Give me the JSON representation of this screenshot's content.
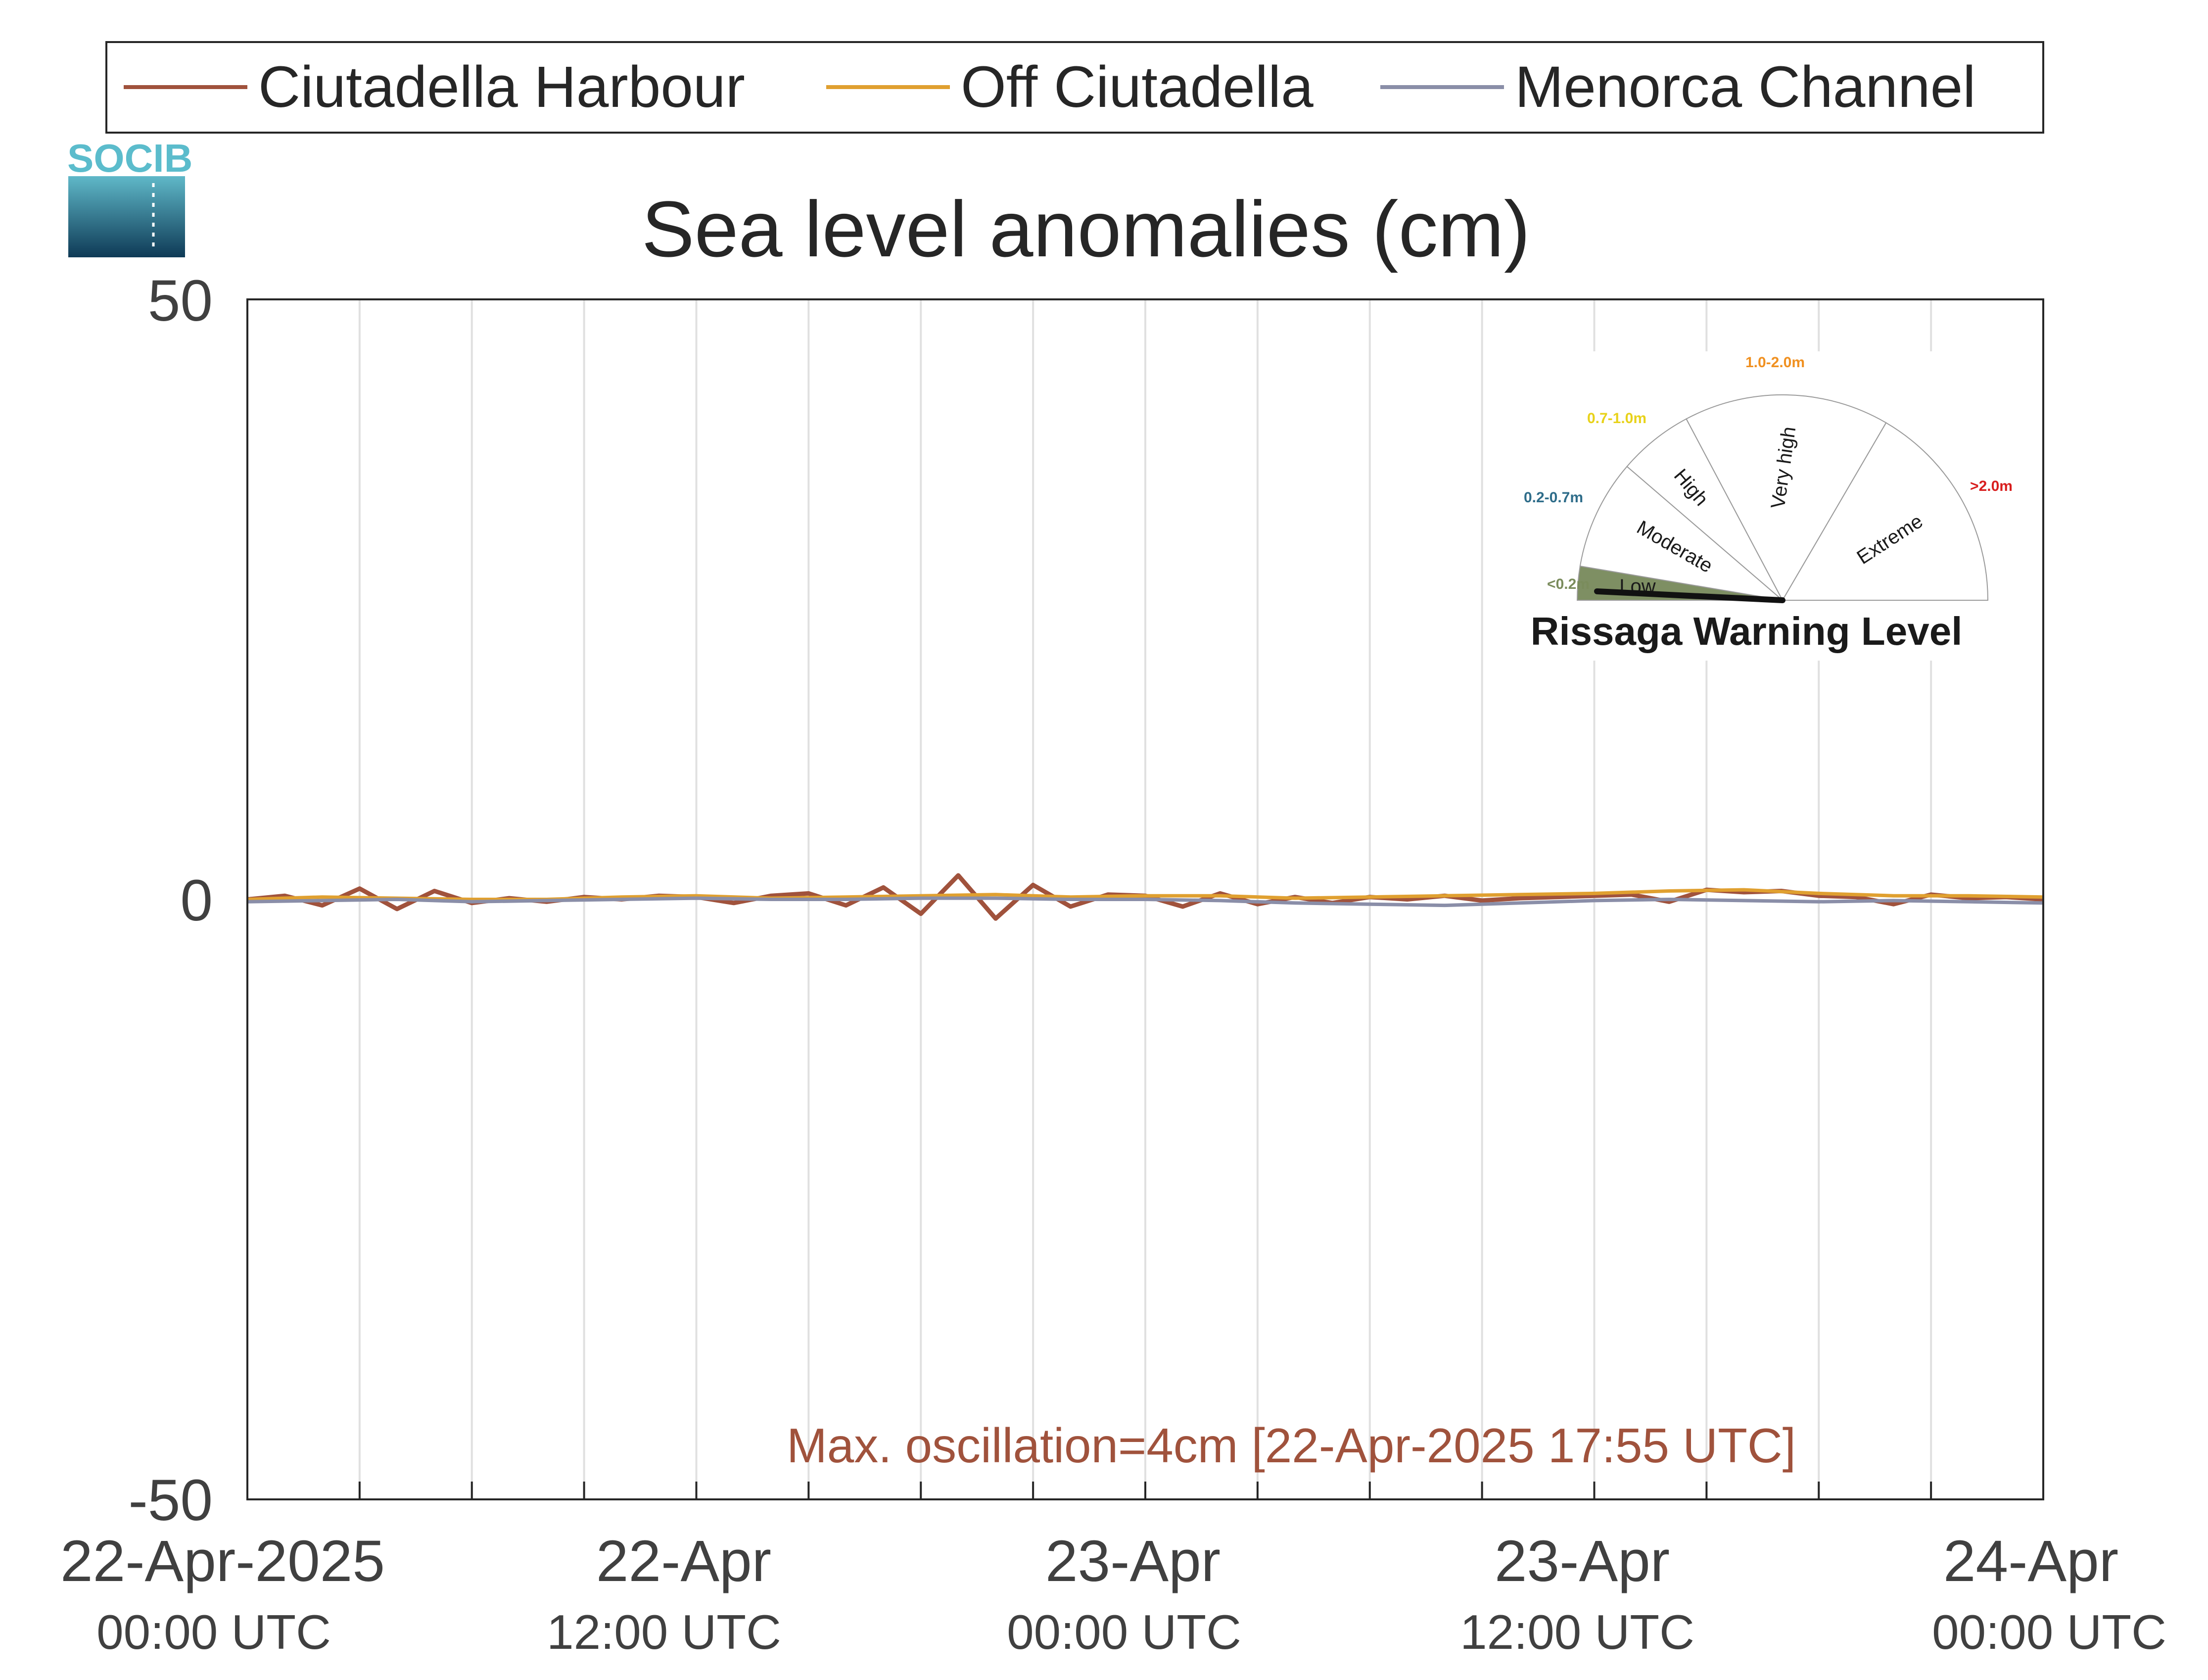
{
  "chart_data": {
    "type": "line",
    "title": "Sea level anomalies (cm)",
    "xlabel": "",
    "ylabel": "",
    "ylim": [
      -50,
      50
    ],
    "yticks": [
      "50",
      "0",
      "-50"
    ],
    "xlim": [
      "2025-04-22 00:00",
      "2025-04-24 00:00"
    ],
    "x_ticks": [
      {
        "date": "22-Apr-2025",
        "time": "00:00 UTC"
      },
      {
        "date": "22-Apr",
        "time": "12:00 UTC"
      },
      {
        "date": "23-Apr",
        "time": "00:00 UTC"
      },
      {
        "date": "23-Apr",
        "time": "12:00 UTC"
      },
      {
        "date": "24-Apr",
        "time": "00:00 UTC"
      }
    ],
    "grid": "vertical",
    "legend_position": "top",
    "series": [
      {
        "name": "Ciutadella Harbour",
        "color": "#a0523c",
        "x_hours": [
          0,
          1,
          2,
          3,
          4,
          5,
          6,
          7,
          8,
          9,
          10,
          11,
          12,
          13,
          14,
          15,
          16,
          17,
          18,
          19,
          20,
          21,
          22,
          23,
          24,
          25,
          26,
          27,
          28,
          29,
          30,
          31,
          32,
          33,
          34,
          35,
          36,
          37,
          38,
          39,
          40,
          41,
          42,
          43,
          44,
          45,
          46,
          47,
          48
        ],
        "values": [
          0,
          0.3,
          -0.5,
          0.9,
          -0.8,
          0.7,
          -0.3,
          0.1,
          -0.2,
          0.2,
          0,
          0.3,
          0.2,
          -0.3,
          0.3,
          0.5,
          -0.5,
          1.0,
          -1.2,
          2.0,
          -1.6,
          1.2,
          -0.6,
          0.4,
          0.3,
          -0.6,
          0.5,
          -0.4,
          0.2,
          -0.3,
          0.2,
          0,
          0.3,
          -0.1,
          0.1,
          0.2,
          0.3,
          0.4,
          -0.2,
          0.8,
          0.6,
          0.7,
          0.3,
          0.2,
          -0.4,
          0.4,
          0.1,
          0.2,
          0
        ]
      },
      {
        "name": "Off Ciutadella",
        "color": "#e0a030",
        "x_hours": [
          0,
          2,
          4,
          6,
          8,
          10,
          12,
          14,
          16,
          18,
          20,
          22,
          24,
          26,
          28,
          30,
          32,
          34,
          36,
          38,
          40,
          42,
          44,
          46,
          48
        ],
        "values": [
          0,
          0.2,
          0.1,
          0,
          0,
          0.2,
          0.3,
          0.1,
          0.2,
          0.3,
          0.4,
          0.2,
          0.3,
          0.3,
          0.1,
          0.2,
          0.3,
          0.4,
          0.5,
          0.7,
          0.8,
          0.5,
          0.3,
          0.3,
          0.2
        ]
      },
      {
        "name": "Menorca Channel",
        "color": "#8a8ea8",
        "x_hours": [
          0,
          2,
          4,
          6,
          8,
          10,
          12,
          14,
          16,
          18,
          20,
          22,
          24,
          26,
          28,
          30,
          32,
          34,
          36,
          38,
          40,
          42,
          44,
          46,
          48
        ],
        "values": [
          -0.2,
          -0.1,
          0,
          -0.2,
          -0.1,
          0,
          0.1,
          0,
          0,
          0.1,
          0.1,
          0,
          0,
          -0.1,
          -0.3,
          -0.4,
          -0.5,
          -0.3,
          -0.1,
          0,
          -0.1,
          -0.2,
          -0.1,
          -0.2,
          -0.3
        ]
      }
    ],
    "annotation": "Max. oscillation=4cm [22-Apr-2025 17:55 UTC]",
    "annotation_color": "#a0523c"
  },
  "legend": {
    "items": [
      "Ciutadella Harbour",
      "Off Ciutadella",
      "Menorca Channel"
    ]
  },
  "logo": {
    "text": "SOCIB",
    "color": "#5bbccc"
  },
  "gauge": {
    "title": "Rissaga Warning Level",
    "current_level": "Low",
    "levels": [
      {
        "label": "Low",
        "range": "<0.2m",
        "range_color": "#7a8c5c",
        "fill": "#7e8f63"
      },
      {
        "label": "Moderate",
        "range": "0.2-0.7m",
        "range_color": "#2f6d8a",
        "fill": "#ffffff"
      },
      {
        "label": "High",
        "range": "0.7-1.0m",
        "range_color": "#e8d21a",
        "fill": "#ffffff"
      },
      {
        "label": "Very high",
        "range": "1.0-2.0m",
        "range_color": "#f09020",
        "fill": "#ffffff"
      },
      {
        "label": "Extreme",
        "range": ">2.0m",
        "range_color": "#d81e1e",
        "fill": "#ffffff"
      }
    ]
  }
}
